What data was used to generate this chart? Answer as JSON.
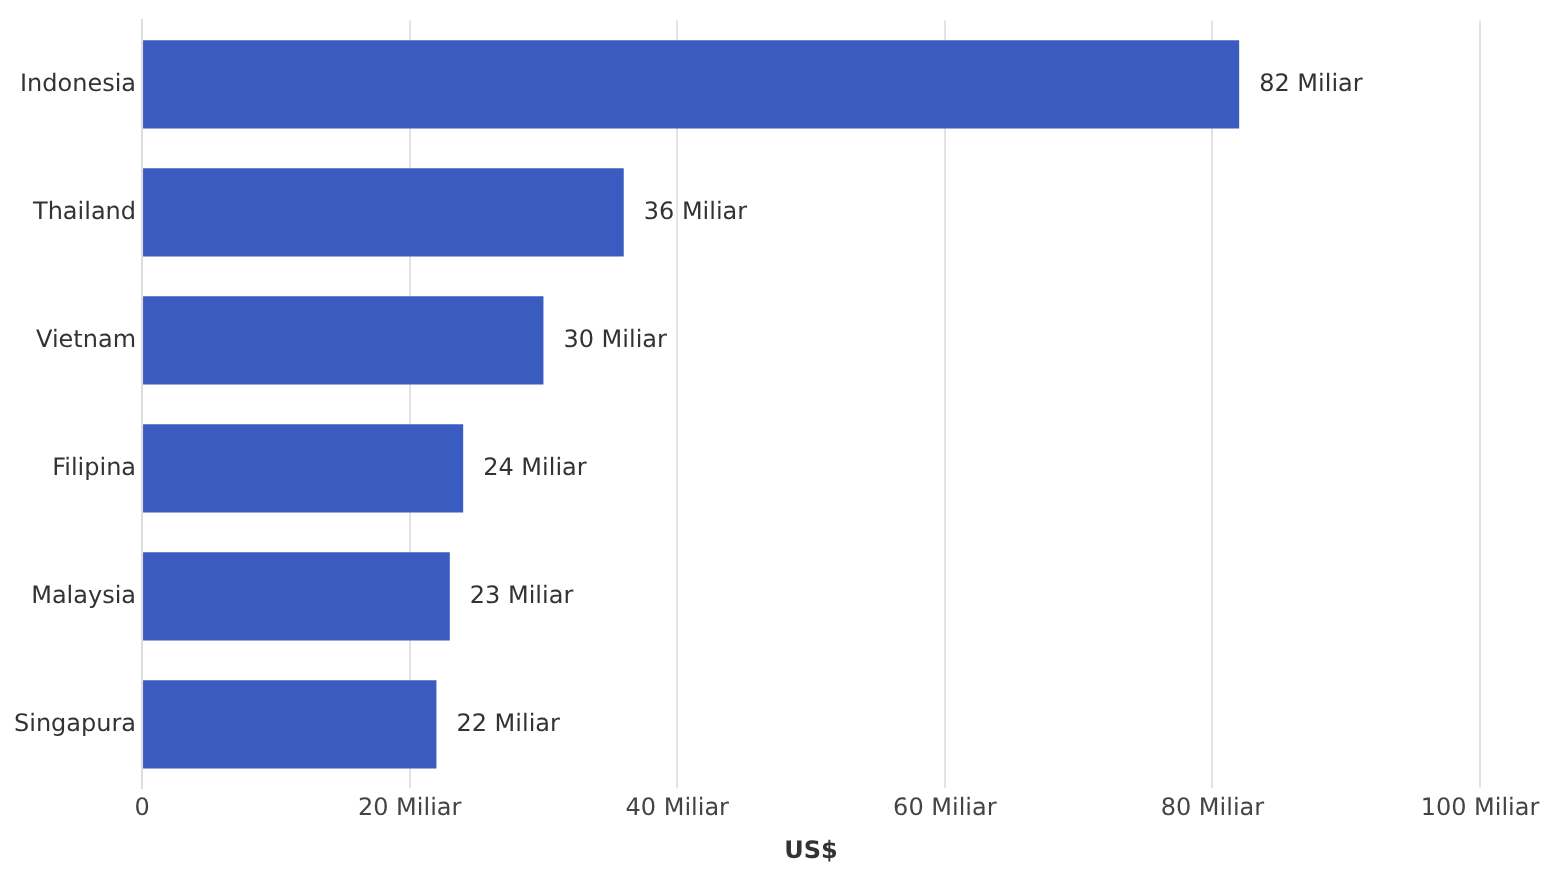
{
  "chart_data": {
    "type": "bar",
    "orientation": "horizontal",
    "xlabel": "US$",
    "categories": [
      "Indonesia",
      "Thailand",
      "Vietnam",
      "Filipina",
      "Malaysia",
      "Singapura"
    ],
    "values": [
      82,
      36,
      30,
      24,
      23,
      22
    ],
    "value_labels": [
      "82 Miliar",
      "36 Miliar",
      "30 Miliar",
      "24 Miliar",
      "23 Miliar",
      "22 Miliar"
    ],
    "color": "#3a5bbf",
    "xlim": [
      0,
      100
    ],
    "xticks": [
      0,
      {
        "value": 20,
        "label": "20 Miliar"
      },
      {
        "value": 40,
        "label": "40 Miliar"
      },
      {
        "value": 60,
        "label": "60 Miliar"
      },
      {
        "value": 80,
        "label": "80 Miliar"
      },
      {
        "value": 100,
        "label": "100 Miliar"
      }
    ],
    "grid": "x",
    "legend": false
  }
}
